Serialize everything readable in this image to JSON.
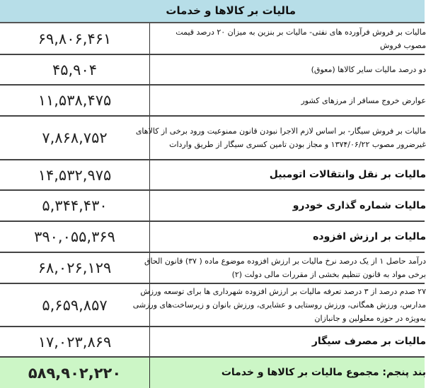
{
  "title": "مالیات بر کالاها و خدمات",
  "rows": [
    {
      "value": "۶۹,۸۰۶,۴۶۱",
      "lines": [
        "مالیات بر فروش  فرآورده های نفتی- مالیات بر بنزین به میزان ۲۰ درصد قیمت",
        "مصوب فروش"
      ],
      "bold": false
    },
    {
      "value": "۴۵,۹۰۴",
      "lines": [
        "دو درصد مالیات سایر کالاها (معوق)"
      ],
      "bold": false
    },
    {
      "value": "۱۱,۵۳۸,۴۷۵",
      "lines": [
        "عوارض خروج مسافر از مرزهای کشور"
      ],
      "bold": false
    },
    {
      "value": "۷,۸۶۸,۷۵۲",
      "lines": [
        "مالیات بر فروش سیگار- بر اساس لازم الاجرا نبودن قانون ممنوعیت ورود برخی از کالاهای",
        "غیرضرور مصوب ۱۳۷۴/۰۶/۲۲ و مجاز بودن تامین کسری سیگار از طریق واردات"
      ],
      "bold": false
    },
    {
      "value": "۱۴,۵۳۲,۹۷۵",
      "lines": [
        "مالیات بر نقل وانتقالات اتومبیل"
      ],
      "bold": true
    },
    {
      "value": "۵,۳۴۴,۴۳۰",
      "lines": [
        "مالیات شماره گذاری خودرو"
      ],
      "bold": true
    },
    {
      "value": "۳۹۰,۰۵۵,۳۶۹",
      "lines": [
        "مالیات بر ارزش افزوده"
      ],
      "bold": true
    },
    {
      "value": "۶۸,۰۲۶,۱۲۹",
      "lines": [
        "درآمد حاصل ۱ از یک درصد نرخ مالیات بر ارزش افزوده موضوع ماده ( ۳۷) قانون الحاق",
        "برخی مواد به قانون تنظیم بخشی از مقررات مالی دولت (۲)"
      ],
      "bold": false
    },
    {
      "value": "۵,۶۵۹,۸۵۷",
      "lines": [
        "۲۷ صدم درصد از ۳ درصد تعرفه مالیات بر ارزش افزوده شهرداری ها برای توسعه ورزش",
        "مدارس، ورزش همگانی، ورزش روستایی و عشایری، ورزش بانوان و زیرساخت‌های ورزشی",
        "به‌ویژه در حوزه معلولین و جانبازان"
      ],
      "bold": false
    },
    {
      "value": "۱۷,۰۲۳,۸۶۹",
      "lines": [
        "مالیات بر مصرف سیگار"
      ],
      "bold": true
    }
  ],
  "total": {
    "value": "۵۸۹,۹۰۲,۲۲۰",
    "label": "بند پنجم: مجموع مالیات بر کالاها و خدمات"
  },
  "colors": {
    "header": "#b7dee8",
    "total": "#ccf6c6"
  }
}
